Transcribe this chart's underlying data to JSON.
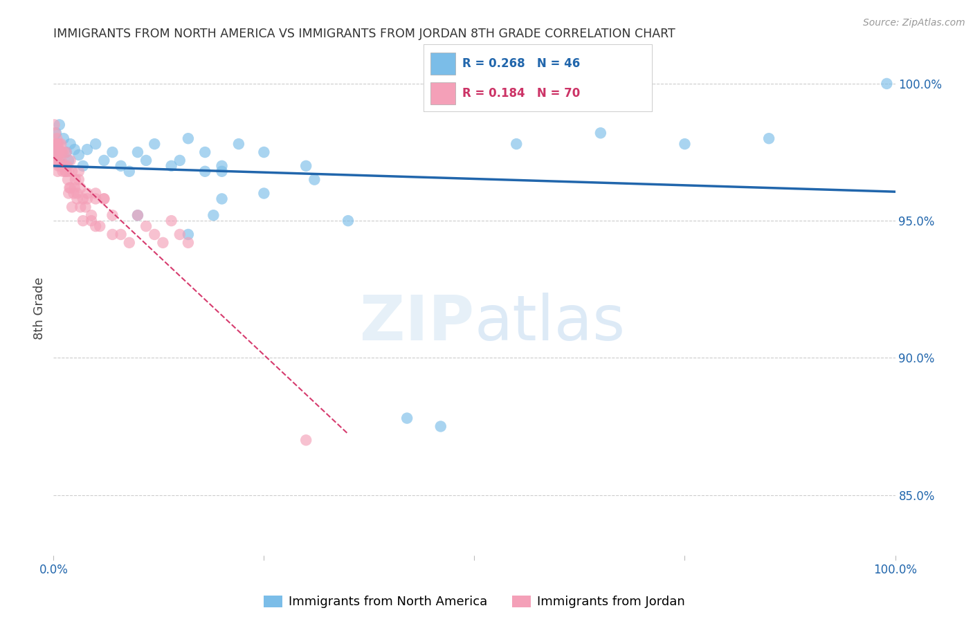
{
  "title": "IMMIGRANTS FROM NORTH AMERICA VS IMMIGRANTS FROM JORDAN 8TH GRADE CORRELATION CHART",
  "source": "Source: ZipAtlas.com",
  "ylabel": "8th Grade",
  "legend_blue_label": "Immigrants from North America",
  "legend_pink_label": "Immigrants from Jordan",
  "blue_R": 0.268,
  "blue_N": 46,
  "pink_R": 0.184,
  "pink_N": 70,
  "blue_color": "#7bbde8",
  "pink_color": "#f4a0b8",
  "trend_blue_color": "#2166ac",
  "trend_pink_color": "#d63b6e",
  "xlim": [
    0.0,
    1.0
  ],
  "ylim": [
    0.828,
    1.008
  ],
  "right_yticks": [
    0.85,
    0.9,
    0.95,
    1.0
  ],
  "right_ytick_labels": [
    "85.0%",
    "90.0%",
    "95.0%",
    "100.0%"
  ],
  "blue_x": [
    0.001,
    0.003,
    0.005,
    0.007,
    0.008,
    0.01,
    0.012,
    0.015,
    0.018,
    0.02,
    0.025,
    0.03,
    0.035,
    0.04,
    0.05,
    0.06,
    0.07,
    0.08,
    0.09,
    0.1,
    0.11,
    0.12,
    0.14,
    0.16,
    0.18,
    0.1,
    0.15,
    0.2,
    0.25,
    0.3,
    0.35,
    0.18,
    0.22,
    0.16,
    0.19,
    0.42,
    0.46,
    0.2,
    0.25,
    0.31,
    0.55,
    0.65,
    0.75,
    0.85,
    0.2,
    0.99
  ],
  "blue_y": [
    0.975,
    0.982,
    0.978,
    0.985,
    0.971,
    0.975,
    0.98,
    0.975,
    0.972,
    0.978,
    0.976,
    0.974,
    0.97,
    0.976,
    0.978,
    0.972,
    0.975,
    0.97,
    0.968,
    0.975,
    0.972,
    0.978,
    0.97,
    0.98,
    0.975,
    0.952,
    0.972,
    0.968,
    0.975,
    0.97,
    0.95,
    0.968,
    0.978,
    0.945,
    0.952,
    0.878,
    0.875,
    0.958,
    0.96,
    0.965,
    0.978,
    0.982,
    0.978,
    0.98,
    0.97,
    1.0
  ],
  "pink_x": [
    0.001,
    0.001,
    0.002,
    0.002,
    0.003,
    0.003,
    0.004,
    0.004,
    0.005,
    0.005,
    0.005,
    0.006,
    0.006,
    0.007,
    0.007,
    0.008,
    0.008,
    0.009,
    0.009,
    0.01,
    0.01,
    0.011,
    0.012,
    0.013,
    0.014,
    0.015,
    0.016,
    0.017,
    0.018,
    0.019,
    0.02,
    0.022,
    0.024,
    0.026,
    0.028,
    0.03,
    0.032,
    0.035,
    0.038,
    0.04,
    0.045,
    0.05,
    0.06,
    0.07,
    0.08,
    0.09,
    0.1,
    0.11,
    0.12,
    0.13,
    0.14,
    0.15,
    0.16,
    0.018,
    0.022,
    0.035,
    0.05,
    0.06,
    0.03,
    0.04,
    0.025,
    0.028,
    0.032,
    0.015,
    0.02,
    0.045,
    0.055,
    0.07,
    0.3,
    0.05
  ],
  "pink_y": [
    0.985,
    0.978,
    0.982,
    0.975,
    0.978,
    0.972,
    0.98,
    0.975,
    0.978,
    0.972,
    0.968,
    0.975,
    0.97,
    0.978,
    0.972,
    0.975,
    0.97,
    0.978,
    0.972,
    0.975,
    0.97,
    0.968,
    0.975,
    0.97,
    0.968,
    0.975,
    0.97,
    0.965,
    0.968,
    0.962,
    0.972,
    0.968,
    0.96,
    0.965,
    0.96,
    0.968,
    0.962,
    0.958,
    0.955,
    0.96,
    0.95,
    0.948,
    0.958,
    0.952,
    0.945,
    0.942,
    0.952,
    0.948,
    0.945,
    0.942,
    0.95,
    0.945,
    0.942,
    0.96,
    0.955,
    0.95,
    0.96,
    0.958,
    0.965,
    0.958,
    0.962,
    0.958,
    0.955,
    0.968,
    0.962,
    0.952,
    0.948,
    0.945,
    0.87,
    0.958
  ]
}
